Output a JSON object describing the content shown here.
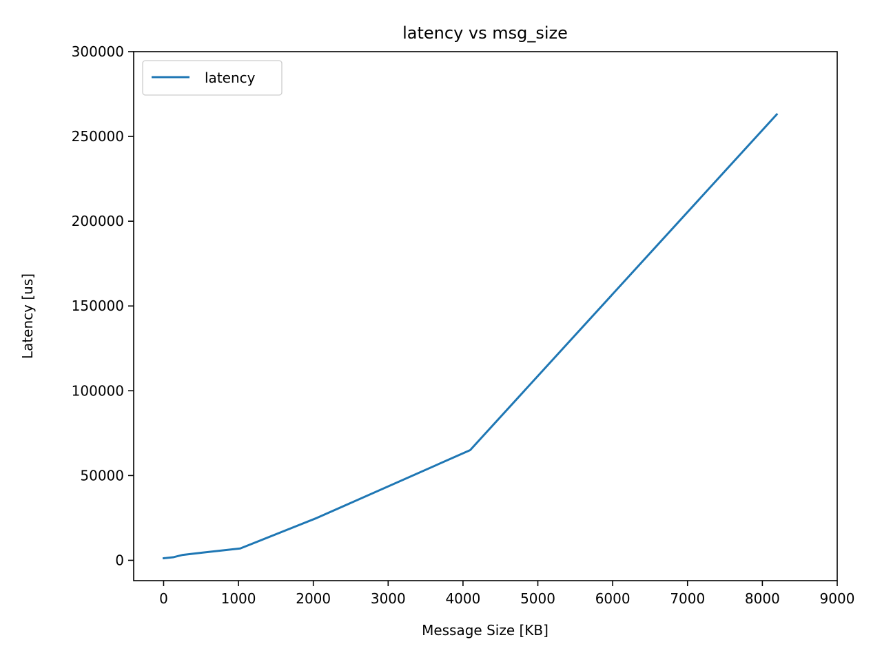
{
  "chart_data": {
    "type": "line",
    "title": "latency vs msg_size",
    "xlabel": "Message Size [KB]",
    "ylabel": "Latency [us]",
    "xlim": [
      -400,
      9000
    ],
    "ylim": [
      -12000,
      300000
    ],
    "xticks": [
      0,
      1000,
      2000,
      3000,
      4000,
      5000,
      6000,
      7000,
      8000,
      9000
    ],
    "yticks": [
      0,
      50000,
      100000,
      150000,
      200000,
      250000,
      300000
    ],
    "xtick_labels": [
      "0",
      "1000",
      "2000",
      "3000",
      "4000",
      "5000",
      "6000",
      "7000",
      "8000",
      "9000"
    ],
    "ytick_labels": [
      "0",
      "50000",
      "100000",
      "150000",
      "200000",
      "250000",
      "300000"
    ],
    "grid": false,
    "legend_position": "top-left",
    "series": [
      {
        "name": "latency",
        "color": "#1f77b4",
        "x": [
          1,
          2,
          4,
          8,
          16,
          32,
          64,
          128,
          256,
          512,
          1024,
          2048,
          4096,
          8192
        ],
        "y": [
          1200,
          1200,
          1200,
          1250,
          1300,
          1350,
          1500,
          1800,
          3200,
          4500,
          7000,
          25000,
          65000,
          263000
        ]
      }
    ]
  }
}
